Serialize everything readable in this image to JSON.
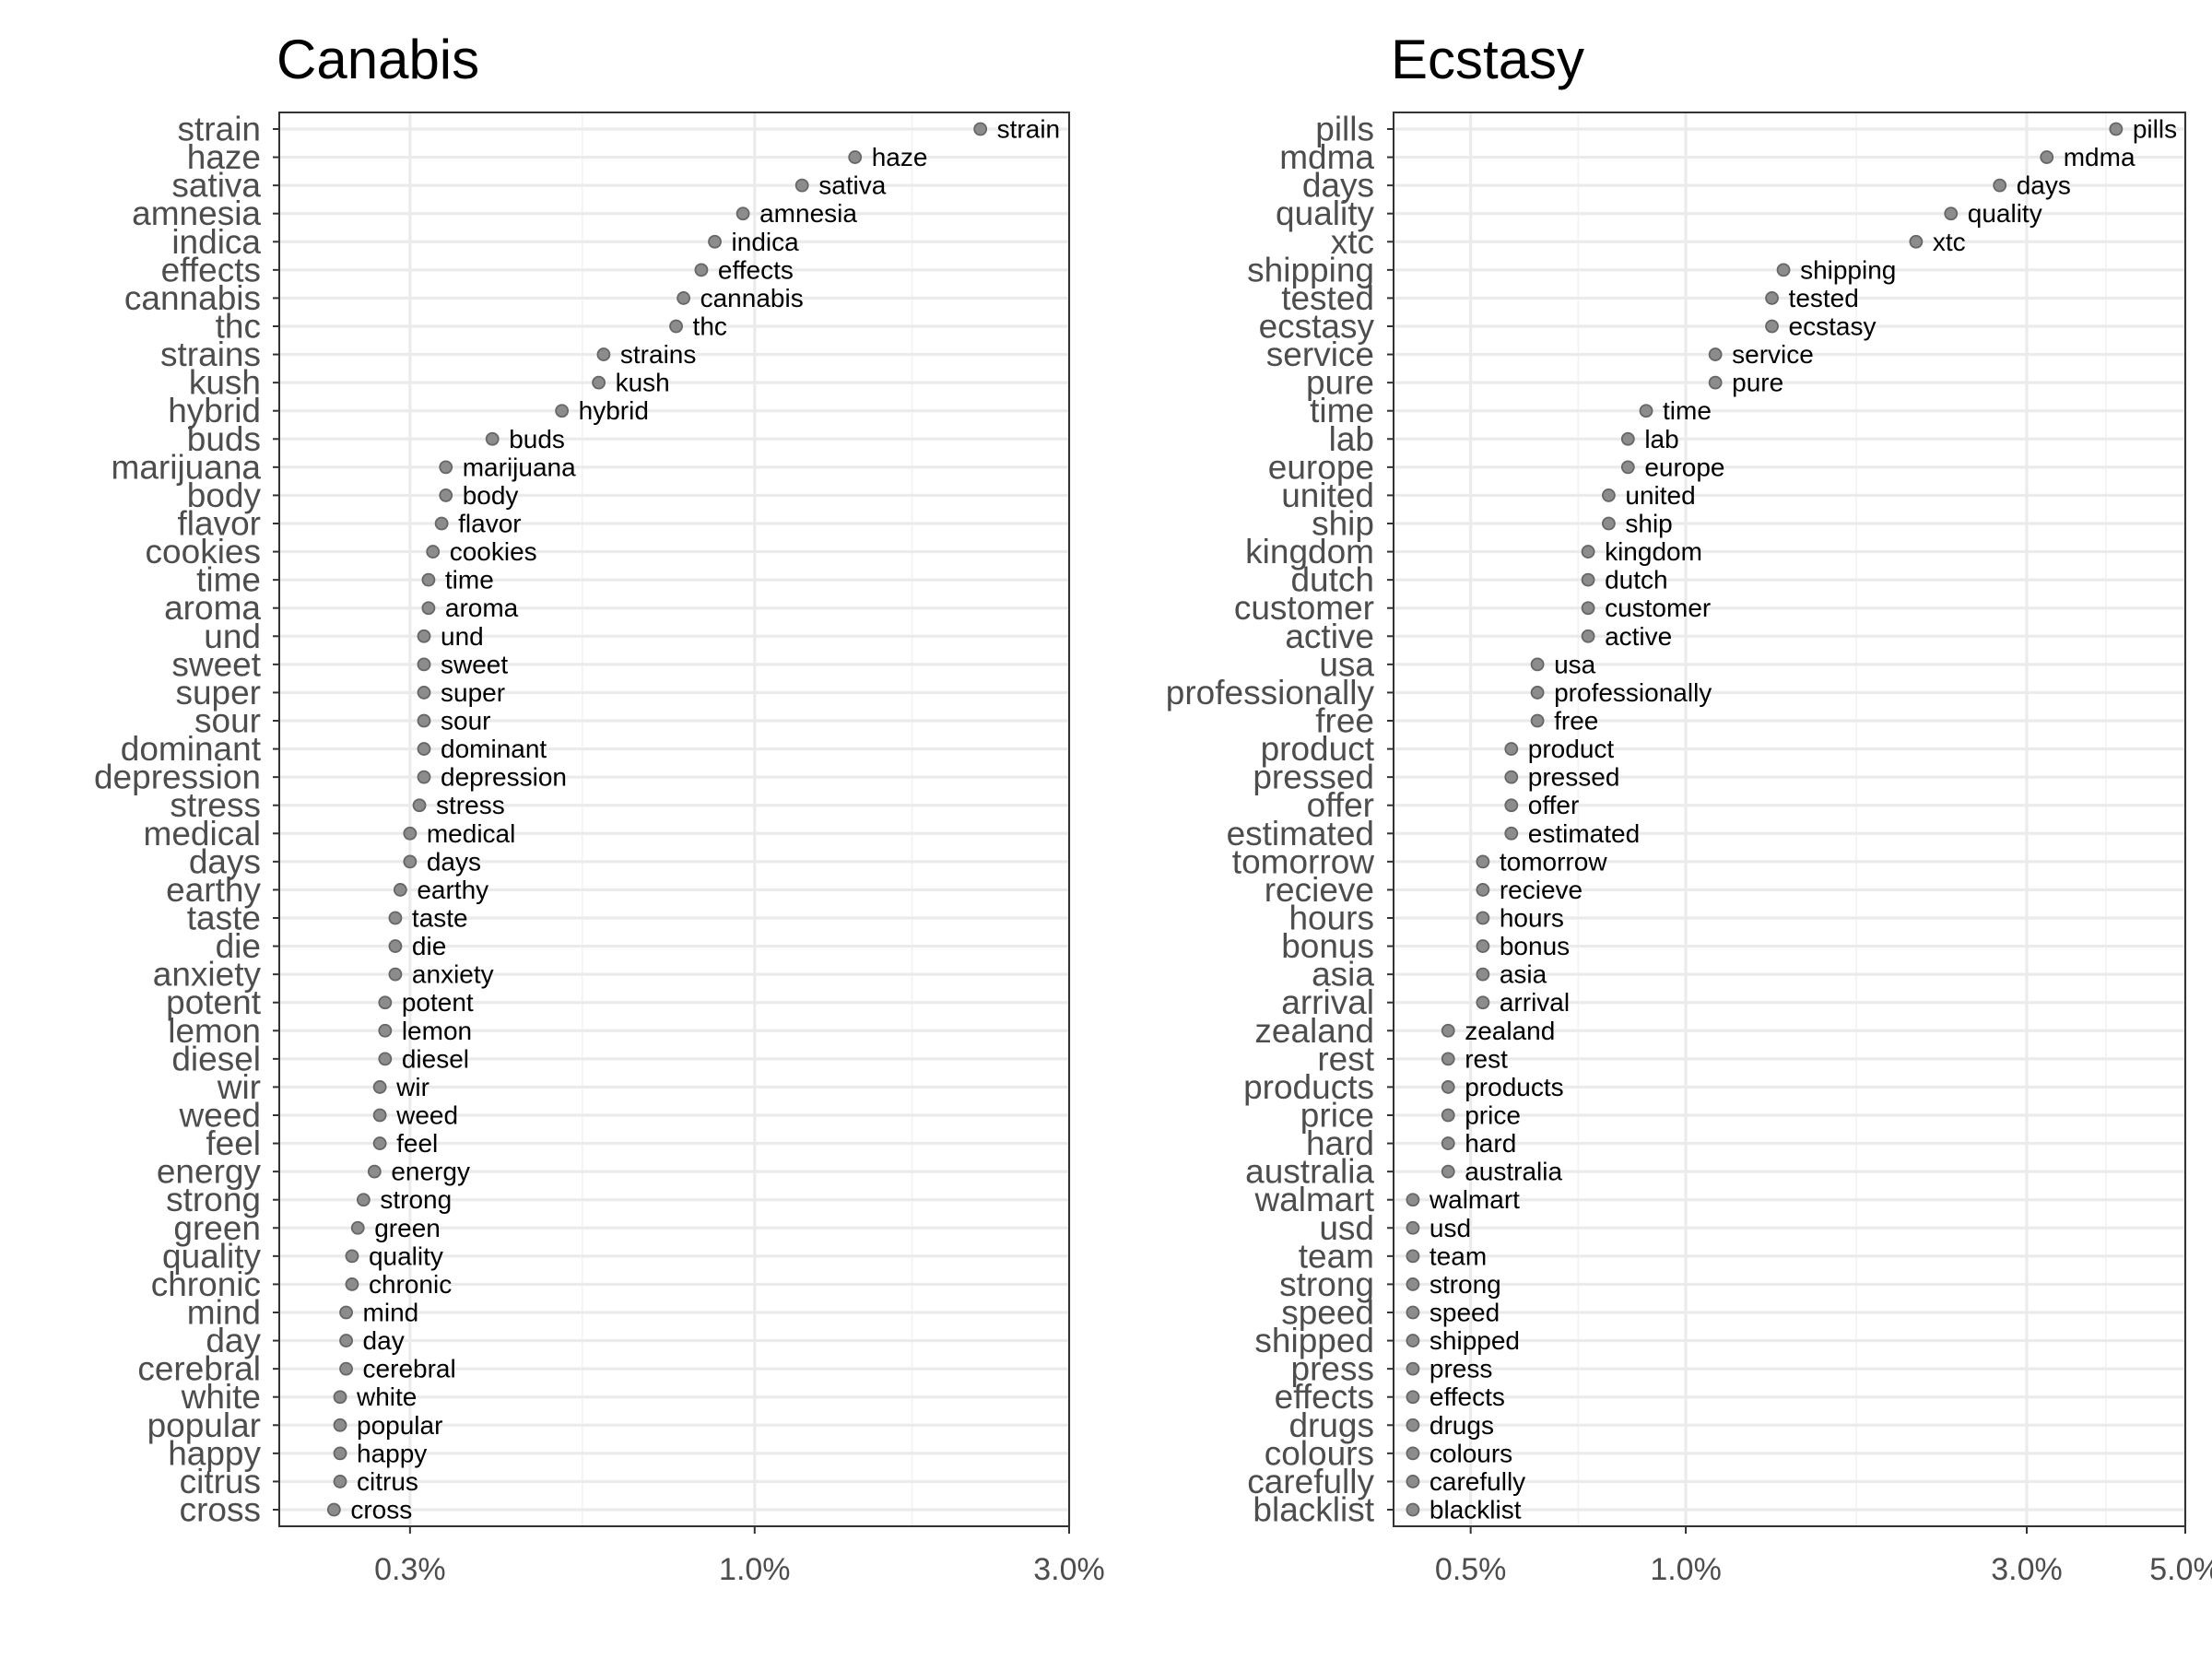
{
  "chart_data": [
    {
      "type": "scatter",
      "title": "Canabis",
      "xscale": "log",
      "xlim": [
        0.19,
        3.0
      ],
      "xticks": [
        0.3,
        1.0,
        3.0
      ],
      "xtick_labels": [
        "0.3%",
        "1.0%",
        "3.0%"
      ],
      "xminor": [
        0.5477,
        1.7321
      ],
      "xlabel": "",
      "ylabel": "",
      "point_color": "#8c8c8c",
      "labels": [
        "strain",
        "haze",
        "sativa",
        "amnesia",
        "indica",
        "effects",
        "cannabis",
        "thc",
        "strains",
        "kush",
        "hybrid",
        "buds",
        "marijuana",
        "body",
        "flavor",
        "cookies",
        "time",
        "aroma",
        "und",
        "sweet",
        "super",
        "sour",
        "dominant",
        "depression",
        "stress",
        "medical",
        "days",
        "earthy",
        "taste",
        "die",
        "anxiety",
        "potent",
        "lemon",
        "diesel",
        "wir",
        "weed",
        "feel",
        "energy",
        "strong",
        "green",
        "quality",
        "chronic",
        "mind",
        "day",
        "cerebral",
        "white",
        "popular",
        "happy",
        "citrus",
        "cross"
      ],
      "values": [
        2.2,
        1.42,
        1.18,
        0.96,
        0.87,
        0.83,
        0.78,
        0.76,
        0.59,
        0.58,
        0.51,
        0.4,
        0.34,
        0.34,
        0.335,
        0.325,
        0.32,
        0.32,
        0.315,
        0.315,
        0.315,
        0.315,
        0.315,
        0.315,
        0.31,
        0.3,
        0.3,
        0.29,
        0.285,
        0.285,
        0.285,
        0.275,
        0.275,
        0.275,
        0.27,
        0.27,
        0.27,
        0.265,
        0.255,
        0.25,
        0.245,
        0.245,
        0.24,
        0.24,
        0.24,
        0.235,
        0.235,
        0.235,
        0.235,
        0.23
      ]
    },
    {
      "type": "scatter",
      "title": "Ecstasy",
      "xscale": "log",
      "xlim": [
        0.39,
        5.0
      ],
      "xticks": [
        0.5,
        1.0,
        3.0,
        5.0
      ],
      "xtick_labels": [
        "0.5%",
        "1.0%",
        "3.0%",
        "5.0%"
      ],
      "xminor": [
        0.7071,
        1.7321,
        3.873
      ],
      "xlabel": "",
      "ylabel": "",
      "point_color": "#8c8c8c",
      "labels": [
        "pills",
        "mdma",
        "days",
        "quality",
        "xtc",
        "shipping",
        "tested",
        "ecstasy",
        "service",
        "pure",
        "time",
        "lab",
        "europe",
        "united",
        "ship",
        "kingdom",
        "dutch",
        "customer",
        "active",
        "usa",
        "professionally",
        "free",
        "product",
        "pressed",
        "offer",
        "estimated",
        "tomorrow",
        "recieve",
        "hours",
        "bonus",
        "asia",
        "arrival",
        "zealand",
        "rest",
        "products",
        "price",
        "hard",
        "australia",
        "walmart",
        "usd",
        "team",
        "strong",
        "speed",
        "shipped",
        "press",
        "effects",
        "drugs",
        "colours",
        "carefully",
        "blacklist"
      ],
      "values": [
        4.0,
        3.2,
        2.75,
        2.35,
        2.1,
        1.37,
        1.32,
        1.32,
        1.1,
        1.1,
        0.88,
        0.83,
        0.83,
        0.78,
        0.78,
        0.73,
        0.73,
        0.73,
        0.73,
        0.62,
        0.62,
        0.62,
        0.57,
        0.57,
        0.57,
        0.57,
        0.52,
        0.52,
        0.52,
        0.52,
        0.52,
        0.52,
        0.465,
        0.465,
        0.465,
        0.465,
        0.465,
        0.465,
        0.415,
        0.415,
        0.415,
        0.415,
        0.415,
        0.415,
        0.415,
        0.415,
        0.415,
        0.415,
        0.415,
        0.415
      ]
    }
  ]
}
